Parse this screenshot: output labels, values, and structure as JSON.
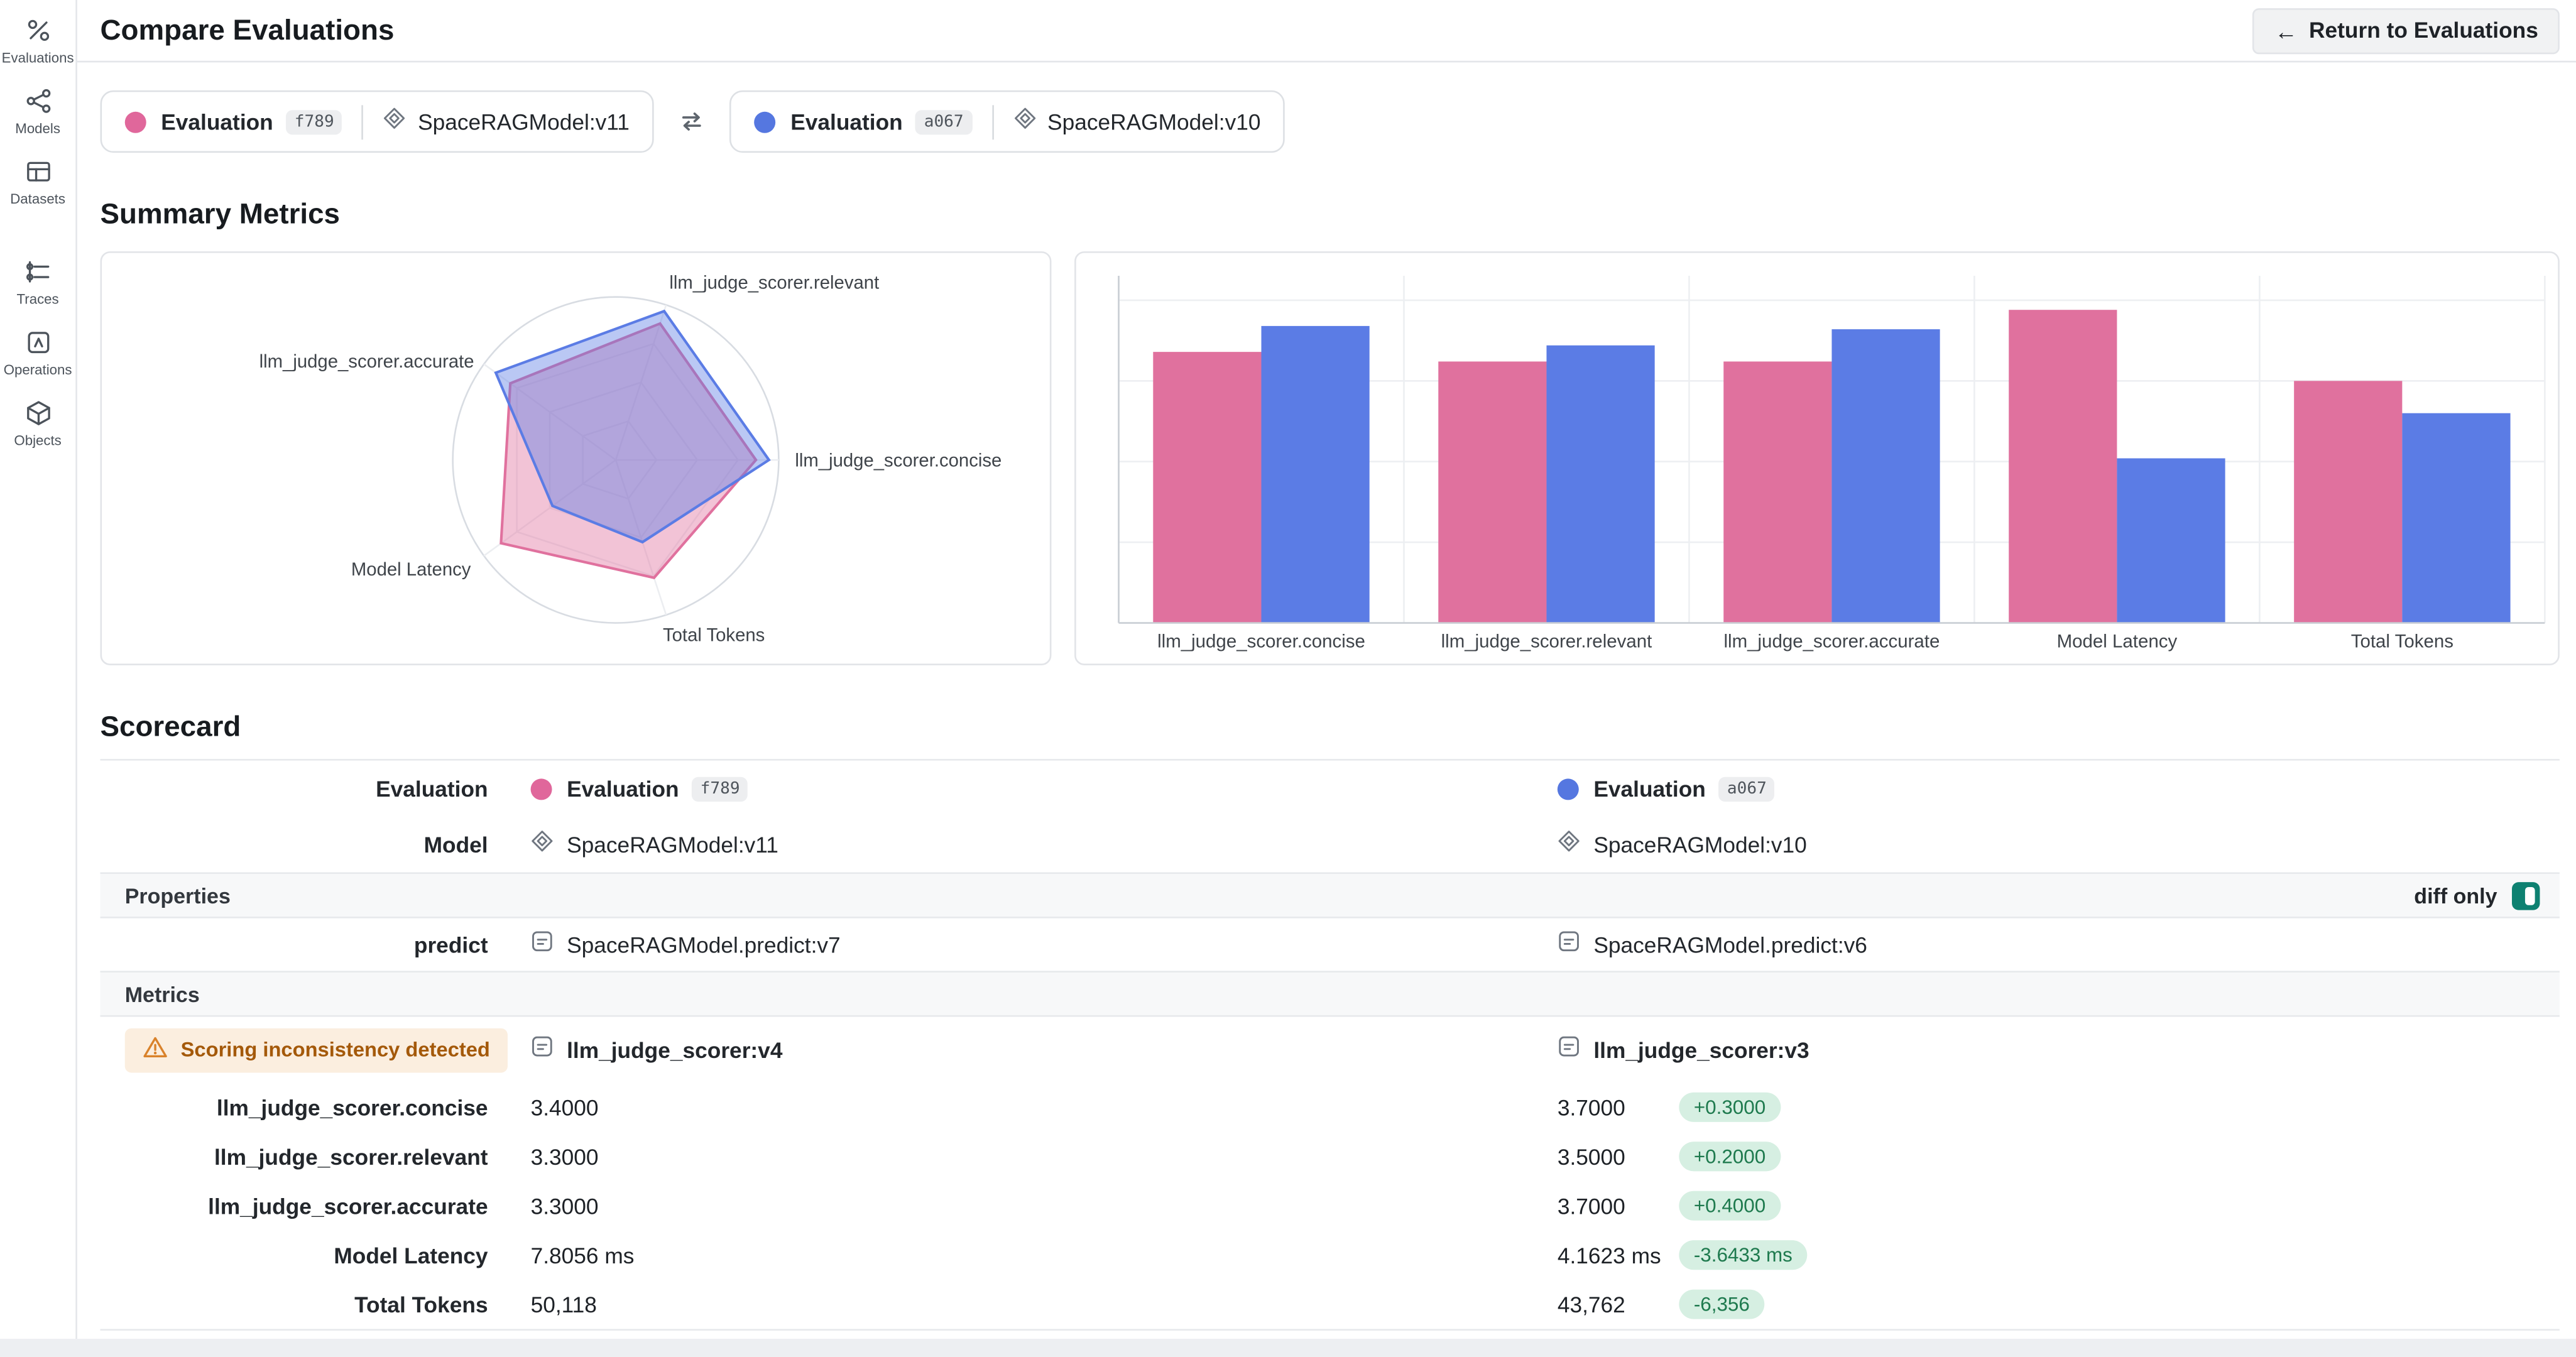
{
  "header": {
    "title": "Compare Evaluations",
    "return_button_label": "Return to Evaluations"
  },
  "sidebar": {
    "items": [
      {
        "label": "Evaluations"
      },
      {
        "label": "Models"
      },
      {
        "label": "Datasets"
      },
      {
        "label": "Traces"
      },
      {
        "label": "Operations"
      },
      {
        "label": "Objects"
      }
    ]
  },
  "comparison_bar": {
    "pills": [
      {
        "eval_label": "Evaluation",
        "eval_id": "f789",
        "model": "SpaceRAGModel:v11",
        "color": "#E0679B"
      },
      {
        "eval_label": "Evaluation",
        "eval_id": "a067",
        "model": "SpaceRAGModel:v10",
        "color": "#5577E0"
      }
    ]
  },
  "sections": {
    "summary_metrics": "Summary Metrics",
    "scorecard": "Scorecard"
  },
  "chart_data": [
    {
      "type": "radar",
      "axes": [
        "llm_judge_scorer.concise",
        "llm_judge_scorer.relevant",
        "llm_judge_scorer.accurate",
        "Model Latency",
        "Total Tokens"
      ],
      "scale": [
        0,
        1
      ],
      "series": [
        {
          "name": "Evaluation f789",
          "color": "#E0719E",
          "values": [
            0.86,
            0.88,
            0.8,
            0.87,
            0.76
          ]
        },
        {
          "name": "Evaluation a067",
          "color": "#5B7CE5",
          "values": [
            0.94,
            0.96,
            0.91,
            0.48,
            0.53
          ]
        }
      ]
    },
    {
      "type": "bar",
      "categories": [
        "llm_judge_scorer.concise",
        "llm_judge_scorer.relevant",
        "llm_judge_scorer.accurate",
        "Model Latency",
        "Total Tokens"
      ],
      "ylim": [
        0,
        1
      ],
      "grid": true,
      "legend": "none",
      "series": [
        {
          "name": "Evaluation f789",
          "color": "#E0719E",
          "values": [
            0.84,
            0.81,
            0.81,
            0.97,
            0.75
          ]
        },
        {
          "name": "Evaluation a067",
          "color": "#5B7CE5",
          "values": [
            0.92,
            0.86,
            0.91,
            0.51,
            0.65
          ]
        }
      ]
    }
  ],
  "scorecard": {
    "eval_row": {
      "label": "Evaluation",
      "left": {
        "name": "Evaluation",
        "id": "f789"
      },
      "right": {
        "name": "Evaluation",
        "id": "a067"
      }
    },
    "model_row": {
      "label": "Model",
      "left": "SpaceRAGModel:v11",
      "right": "SpaceRAGModel:v10"
    },
    "properties_header": "Properties",
    "diff_only_label": "diff only",
    "predict_row": {
      "label": "predict",
      "left": "SpaceRAGModel.predict:v7",
      "right": "SpaceRAGModel.predict:v6"
    },
    "metrics_header": "Metrics",
    "scorer_row": {
      "warning": "Scoring inconsistency detected",
      "left": "llm_judge_scorer:v4",
      "right": "llm_judge_scorer:v3"
    },
    "metric_rows": [
      {
        "label": "llm_judge_scorer.concise",
        "left": "3.4000",
        "right": "3.7000",
        "delta": "+0.3000"
      },
      {
        "label": "llm_judge_scorer.relevant",
        "left": "3.3000",
        "right": "3.5000",
        "delta": "+0.2000"
      },
      {
        "label": "llm_judge_scorer.accurate",
        "left": "3.3000",
        "right": "3.7000",
        "delta": "+0.4000"
      },
      {
        "label": "Model Latency",
        "left": "7.8056 ms",
        "right": "4.1623 ms",
        "delta": "-3.6433 ms"
      },
      {
        "label": "Total Tokens",
        "left": "50,118",
        "right": "43,762",
        "delta": "-6,356"
      }
    ]
  }
}
